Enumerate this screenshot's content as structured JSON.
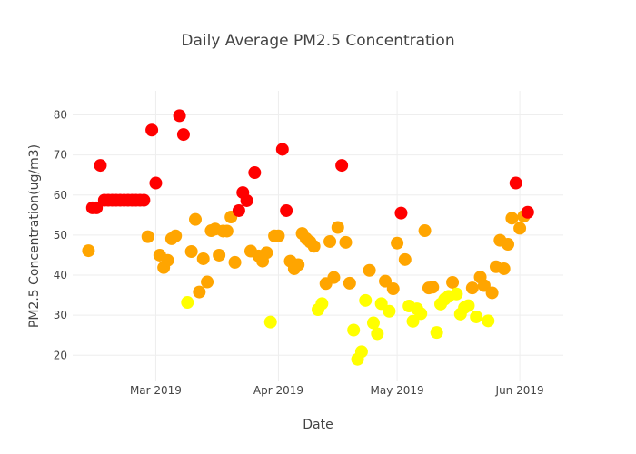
{
  "chart_data": {
    "type": "scatter",
    "title": "Daily Average PM2.5 Concentration",
    "xlabel": "Date",
    "ylabel": "PM2.5 Concentration(ug/m3)",
    "x_type": "date",
    "xlim": [
      "2019-02-08",
      "2019-06-12"
    ],
    "ylim": [
      13.5,
      86
    ],
    "x_ticks": [
      {
        "date": "2019-03-01",
        "label": "Mar 2019"
      },
      {
        "date": "2019-04-01",
        "label": "Apr 2019"
      },
      {
        "date": "2019-05-01",
        "label": "May 2019"
      },
      {
        "date": "2019-06-01",
        "label": "Jun 2019"
      }
    ],
    "y_ticks": [
      20,
      30,
      40,
      50,
      60,
      70,
      80
    ],
    "grid": true,
    "legend": "none",
    "marker_colors": {
      "red": "#ff0000",
      "orange": "#ffa500",
      "yellow": "#ffff00"
    },
    "points": [
      {
        "x": "2019-02-12",
        "y": 46.1,
        "c": "orange"
      },
      {
        "x": "2019-02-13",
        "y": 56.8,
        "c": "red"
      },
      {
        "x": "2019-02-14",
        "y": 56.8,
        "c": "red"
      },
      {
        "x": "2019-02-15",
        "y": 67.4,
        "c": "red"
      },
      {
        "x": "2019-02-16",
        "y": 58.7,
        "c": "red"
      },
      {
        "x": "2019-02-17",
        "y": 58.7,
        "c": "red"
      },
      {
        "x": "2019-02-18",
        "y": 58.7,
        "c": "red"
      },
      {
        "x": "2019-02-19",
        "y": 58.7,
        "c": "red"
      },
      {
        "x": "2019-02-20",
        "y": 58.7,
        "c": "red"
      },
      {
        "x": "2019-02-21",
        "y": 58.7,
        "c": "red"
      },
      {
        "x": "2019-02-22",
        "y": 58.7,
        "c": "red"
      },
      {
        "x": "2019-02-23",
        "y": 58.7,
        "c": "red"
      },
      {
        "x": "2019-02-24",
        "y": 58.7,
        "c": "red"
      },
      {
        "x": "2019-02-25",
        "y": 58.7,
        "c": "red"
      },
      {
        "x": "2019-02-26",
        "y": 58.7,
        "c": "red"
      },
      {
        "x": "2019-02-27",
        "y": 49.6,
        "c": "orange"
      },
      {
        "x": "2019-02-28",
        "y": 76.2,
        "c": "red"
      },
      {
        "x": "2019-03-01",
        "y": 63.0,
        "c": "red"
      },
      {
        "x": "2019-03-02",
        "y": 45.0,
        "c": "orange"
      },
      {
        "x": "2019-03-03",
        "y": 41.9,
        "c": "orange"
      },
      {
        "x": "2019-03-04",
        "y": 43.7,
        "c": "orange"
      },
      {
        "x": "2019-03-05",
        "y": 49.1,
        "c": "orange"
      },
      {
        "x": "2019-03-06",
        "y": 49.8,
        "c": "orange"
      },
      {
        "x": "2019-03-07",
        "y": 79.8,
        "c": "red"
      },
      {
        "x": "2019-03-08",
        "y": 75.1,
        "c": "red"
      },
      {
        "x": "2019-03-09",
        "y": 33.2,
        "c": "yellow"
      },
      {
        "x": "2019-03-10",
        "y": 45.9,
        "c": "orange"
      },
      {
        "x": "2019-03-11",
        "y": 53.9,
        "c": "orange"
      },
      {
        "x": "2019-03-12",
        "y": 35.8,
        "c": "orange"
      },
      {
        "x": "2019-03-13",
        "y": 44.1,
        "c": "orange"
      },
      {
        "x": "2019-03-14",
        "y": 38.3,
        "c": "orange"
      },
      {
        "x": "2019-03-15",
        "y": 51.1,
        "c": "orange"
      },
      {
        "x": "2019-03-16",
        "y": 51.5,
        "c": "orange"
      },
      {
        "x": "2019-03-17",
        "y": 45.0,
        "c": "orange"
      },
      {
        "x": "2019-03-18",
        "y": 51.0,
        "c": "orange"
      },
      {
        "x": "2019-03-19",
        "y": 51.0,
        "c": "orange"
      },
      {
        "x": "2019-03-20",
        "y": 54.5,
        "c": "orange"
      },
      {
        "x": "2019-03-21",
        "y": 43.2,
        "c": "orange"
      },
      {
        "x": "2019-03-22",
        "y": 56.1,
        "c": "red"
      },
      {
        "x": "2019-03-23",
        "y": 60.6,
        "c": "red"
      },
      {
        "x": "2019-03-24",
        "y": 58.6,
        "c": "red"
      },
      {
        "x": "2019-03-25",
        "y": 46.0,
        "c": "orange"
      },
      {
        "x": "2019-03-26",
        "y": 65.6,
        "c": "red"
      },
      {
        "x": "2019-03-27",
        "y": 44.8,
        "c": "orange"
      },
      {
        "x": "2019-03-28",
        "y": 43.5,
        "c": "orange"
      },
      {
        "x": "2019-03-29",
        "y": 45.6,
        "c": "orange"
      },
      {
        "x": "2019-03-30",
        "y": 28.3,
        "c": "yellow"
      },
      {
        "x": "2019-03-31",
        "y": 49.8,
        "c": "orange"
      },
      {
        "x": "2019-04-01",
        "y": 49.8,
        "c": "orange"
      },
      {
        "x": "2019-04-02",
        "y": 71.4,
        "c": "red"
      },
      {
        "x": "2019-04-03",
        "y": 56.1,
        "c": "red"
      },
      {
        "x": "2019-04-04",
        "y": 43.5,
        "c": "orange"
      },
      {
        "x": "2019-04-05",
        "y": 41.6,
        "c": "orange"
      },
      {
        "x": "2019-04-06",
        "y": 42.6,
        "c": "orange"
      },
      {
        "x": "2019-04-07",
        "y": 50.4,
        "c": "orange"
      },
      {
        "x": "2019-04-08",
        "y": 49.1,
        "c": "orange"
      },
      {
        "x": "2019-04-09",
        "y": 48.3,
        "c": "orange"
      },
      {
        "x": "2019-04-10",
        "y": 47.2,
        "c": "orange"
      },
      {
        "x": "2019-04-11",
        "y": 31.4,
        "c": "yellow"
      },
      {
        "x": "2019-04-12",
        "y": 32.9,
        "c": "yellow"
      },
      {
        "x": "2019-04-13",
        "y": 37.9,
        "c": "orange"
      },
      {
        "x": "2019-04-14",
        "y": 48.4,
        "c": "orange"
      },
      {
        "x": "2019-04-15",
        "y": 39.4,
        "c": "orange"
      },
      {
        "x": "2019-04-16",
        "y": 51.9,
        "c": "orange"
      },
      {
        "x": "2019-04-17",
        "y": 67.4,
        "c": "red"
      },
      {
        "x": "2019-04-18",
        "y": 48.2,
        "c": "orange"
      },
      {
        "x": "2019-04-19",
        "y": 38.0,
        "c": "orange"
      },
      {
        "x": "2019-04-20",
        "y": 26.3,
        "c": "yellow"
      },
      {
        "x": "2019-04-21",
        "y": 19.0,
        "c": "yellow"
      },
      {
        "x": "2019-04-22",
        "y": 20.9,
        "c": "yellow"
      },
      {
        "x": "2019-04-23",
        "y": 33.7,
        "c": "yellow"
      },
      {
        "x": "2019-04-24",
        "y": 41.2,
        "c": "orange"
      },
      {
        "x": "2019-04-25",
        "y": 28.1,
        "c": "yellow"
      },
      {
        "x": "2019-04-26",
        "y": 25.4,
        "c": "yellow"
      },
      {
        "x": "2019-04-27",
        "y": 32.9,
        "c": "yellow"
      },
      {
        "x": "2019-04-28",
        "y": 38.5,
        "c": "orange"
      },
      {
        "x": "2019-04-29",
        "y": 31.0,
        "c": "yellow"
      },
      {
        "x": "2019-04-30",
        "y": 36.6,
        "c": "orange"
      },
      {
        "x": "2019-05-01",
        "y": 48.0,
        "c": "orange"
      },
      {
        "x": "2019-05-02",
        "y": 55.5,
        "c": "red"
      },
      {
        "x": "2019-05-03",
        "y": 43.9,
        "c": "orange"
      },
      {
        "x": "2019-05-04",
        "y": 32.3,
        "c": "yellow"
      },
      {
        "x": "2019-05-05",
        "y": 28.5,
        "c": "yellow"
      },
      {
        "x": "2019-05-06",
        "y": 31.6,
        "c": "yellow"
      },
      {
        "x": "2019-05-07",
        "y": 30.4,
        "c": "yellow"
      },
      {
        "x": "2019-05-08",
        "y": 51.1,
        "c": "orange"
      },
      {
        "x": "2019-05-09",
        "y": 36.8,
        "c": "orange"
      },
      {
        "x": "2019-05-10",
        "y": 37.0,
        "c": "orange"
      },
      {
        "x": "2019-05-11",
        "y": 25.7,
        "c": "yellow"
      },
      {
        "x": "2019-05-12",
        "y": 32.8,
        "c": "yellow"
      },
      {
        "x": "2019-05-13",
        "y": 34.0,
        "c": "yellow"
      },
      {
        "x": "2019-05-14",
        "y": 34.7,
        "c": "yellow"
      },
      {
        "x": "2019-05-15",
        "y": 38.2,
        "c": "orange"
      },
      {
        "x": "2019-05-16",
        "y": 35.3,
        "c": "yellow"
      },
      {
        "x": "2019-05-17",
        "y": 30.3,
        "c": "yellow"
      },
      {
        "x": "2019-05-18",
        "y": 31.9,
        "c": "yellow"
      },
      {
        "x": "2019-05-19",
        "y": 32.4,
        "c": "yellow"
      },
      {
        "x": "2019-05-20",
        "y": 36.8,
        "c": "orange"
      },
      {
        "x": "2019-05-21",
        "y": 29.6,
        "c": "yellow"
      },
      {
        "x": "2019-05-22",
        "y": 39.5,
        "c": "orange"
      },
      {
        "x": "2019-05-23",
        "y": 37.4,
        "c": "orange"
      },
      {
        "x": "2019-05-24",
        "y": 28.6,
        "c": "yellow"
      },
      {
        "x": "2019-05-25",
        "y": 35.6,
        "c": "orange"
      },
      {
        "x": "2019-05-26",
        "y": 42.1,
        "c": "orange"
      },
      {
        "x": "2019-05-27",
        "y": 48.7,
        "c": "orange"
      },
      {
        "x": "2019-05-28",
        "y": 41.6,
        "c": "orange"
      },
      {
        "x": "2019-05-29",
        "y": 47.7,
        "c": "orange"
      },
      {
        "x": "2019-05-30",
        "y": 54.2,
        "c": "orange"
      },
      {
        "x": "2019-05-31",
        "y": 63.0,
        "c": "red"
      },
      {
        "x": "2019-06-01",
        "y": 51.7,
        "c": "orange"
      },
      {
        "x": "2019-06-02",
        "y": 54.7,
        "c": "orange"
      },
      {
        "x": "2019-06-03",
        "y": 55.7,
        "c": "red"
      }
    ]
  }
}
